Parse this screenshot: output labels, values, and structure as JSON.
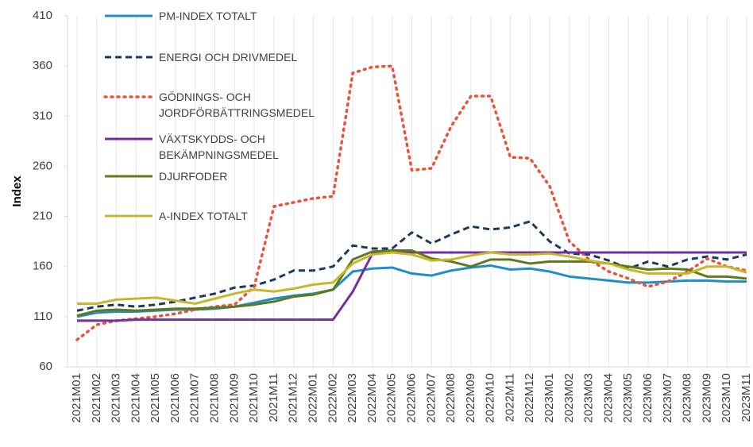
{
  "chart_data": {
    "type": "line",
    "ylabel": "Index",
    "categories": [
      "2021M01",
      "2021M02",
      "2021M03",
      "2021M04",
      "2021M05",
      "2021M06",
      "2021M07",
      "2021M08",
      "2021M09",
      "2021M10",
      "2021M11",
      "2021M12",
      "2022M01",
      "2022M02",
      "2022M03",
      "2022M04",
      "2022M05",
      "2022M06",
      "2022M07",
      "2022M08",
      "2022M09",
      "2022M10",
      "2022M11",
      "2022M12",
      "2023M01",
      "2023M02",
      "2023M03",
      "2023M04",
      "2023M05",
      "2023M06",
      "2023M07",
      "2023M08",
      "2023M09",
      "2023M10",
      "2023M11"
    ],
    "ylim": [
      60,
      410
    ],
    "yticks": [
      60,
      110,
      160,
      210,
      260,
      310,
      360,
      410
    ],
    "grid": "x",
    "legend": "top-left",
    "series": [
      {
        "name": "PM-INDEX TOTALT",
        "color": "#1f8fc8",
        "style": "solid",
        "values": [
          110,
          114,
          115,
          115,
          116,
          117,
          117,
          118,
          120,
          124,
          128,
          131,
          133,
          137,
          155,
          158,
          159,
          153,
          151,
          156,
          159,
          161,
          157,
          158,
          155,
          150,
          148,
          146,
          144,
          144,
          145,
          146,
          146,
          145,
          145
        ]
      },
      {
        "name": "ENERGI OCH DRIVMEDEL",
        "color": "#1b3b5e",
        "style": "dashed",
        "values": [
          116,
          120,
          122,
          120,
          122,
          125,
          129,
          133,
          139,
          141,
          147,
          156,
          156,
          160,
          181,
          178,
          178,
          194,
          183,
          192,
          200,
          197,
          199,
          205,
          185,
          173,
          172,
          166,
          158,
          165,
          160,
          167,
          170,
          167,
          172
        ]
      },
      {
        "name": "GÖDNINGS- OCH JORDFÖRBÄTTRINGSMEDEL",
        "color": "#e8553b",
        "style": "dotted",
        "values": [
          87,
          102,
          106,
          108,
          110,
          113,
          117,
          120,
          122,
          140,
          220,
          224,
          228,
          230,
          353,
          359,
          360,
          256,
          258,
          300,
          330,
          330,
          269,
          268,
          240,
          185,
          167,
          155,
          148,
          140,
          145,
          155,
          168,
          160,
          156
        ]
      },
      {
        "name": "VÄXTSKYDDS- OCH BEKÄMPNINGSMEDEL",
        "color": "#7030a0",
        "style": "solid",
        "values": [
          106,
          106,
          106,
          107,
          107,
          107,
          107,
          107,
          107,
          107,
          107,
          107,
          107,
          107,
          135,
          173,
          174,
          174,
          174,
          174,
          174,
          174,
          174,
          174,
          174,
          174,
          174,
          174,
          174,
          174,
          174,
          174,
          174,
          174,
          174
        ]
      },
      {
        "name": "DJURFODER",
        "color": "#5f7a1e",
        "style": "solid",
        "values": [
          111,
          116,
          117,
          116,
          117,
          118,
          118,
          119,
          120,
          122,
          125,
          130,
          132,
          137,
          167,
          175,
          176,
          176,
          168,
          165,
          160,
          167,
          167,
          163,
          165,
          165,
          165,
          163,
          160,
          157,
          158,
          157,
          150,
          150,
          148
        ]
      },
      {
        "name": "A-INDEX TOTALT",
        "color": "#c9b62a",
        "style": "solid",
        "values": [
          123,
          123,
          127,
          128,
          129,
          126,
          123,
          128,
          133,
          137,
          135,
          138,
          142,
          144,
          163,
          172,
          174,
          172,
          166,
          167,
          171,
          174,
          172,
          172,
          173,
          170,
          166,
          163,
          157,
          153,
          153,
          153,
          160,
          160,
          154
        ]
      }
    ]
  }
}
